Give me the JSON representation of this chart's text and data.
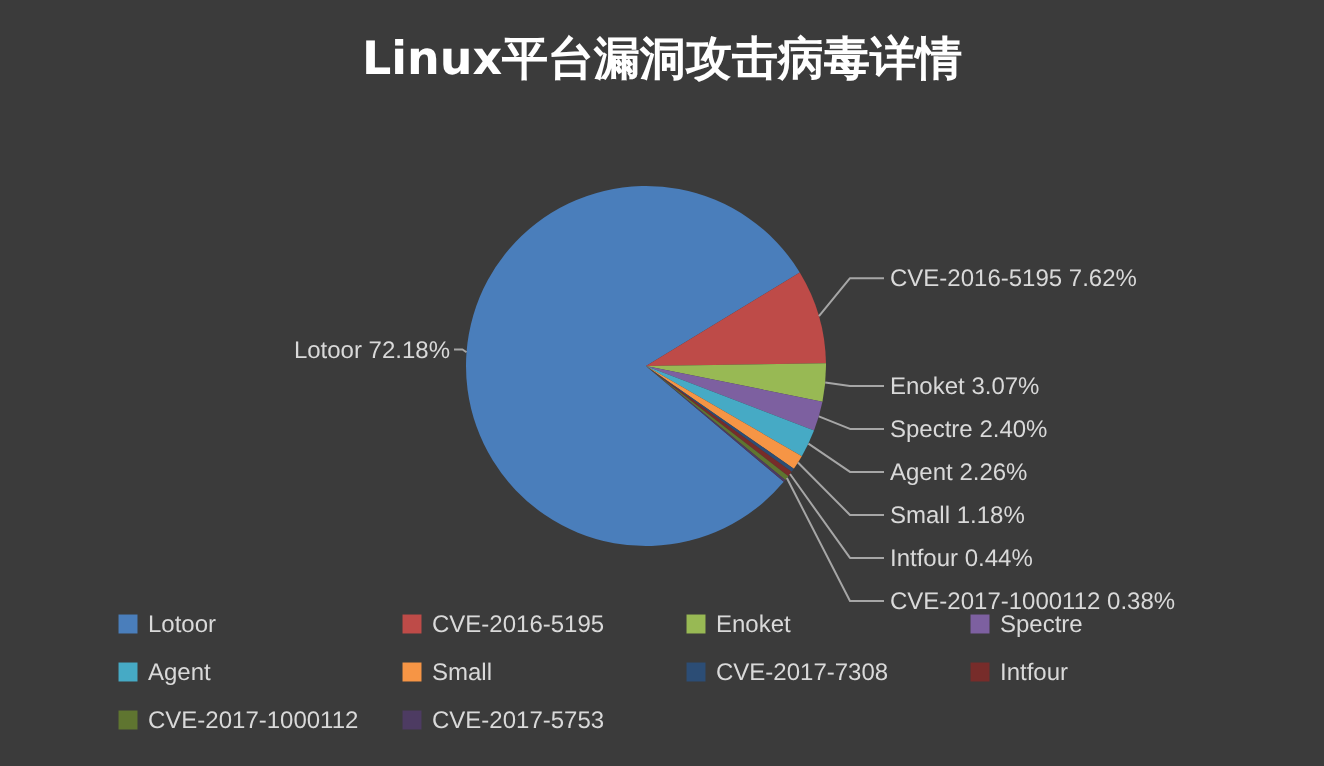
{
  "chart_data": {
    "type": "pie",
    "title": "Linux平台漏洞攻击病毒详情",
    "categories": [
      "Lotoor",
      "CVE-2016-5195",
      "Enoket",
      "Spectre",
      "Agent",
      "Small",
      "CVE-2017-7308",
      "Intfour",
      "CVE-2017-1000112",
      "CVE-2017-5753"
    ],
    "values": [
      72.18,
      7.62,
      3.07,
      2.4,
      2.26,
      1.18,
      0.3,
      0.44,
      0.38,
      0.2
    ],
    "value_labels": [
      "72.18%",
      "7.62%",
      "3.07%",
      "2.40%",
      "2.26%",
      "1.18%",
      null,
      "0.44%",
      "0.38%",
      null
    ],
    "colors": [
      "#4a7ebb",
      "#be4b48",
      "#98b954",
      "#7d60a0",
      "#46aac5",
      "#f69545",
      "#2c4d75",
      "#772c2a",
      "#5f7530",
      "#4d3b62"
    ],
    "legend": "bottom"
  }
}
